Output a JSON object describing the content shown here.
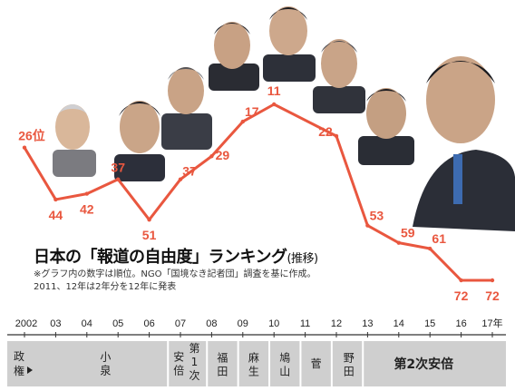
{
  "title": {
    "main": "日本の「報道の自由度」ランキング",
    "suffix": "(推移)"
  },
  "notes": [
    "※グラフ内の数字は順位。NGO「国境なき記者団」調査を基に作成。",
    "2011、12年は2年分を12年に発表"
  ],
  "axis_header": "政権",
  "chart_data": {
    "type": "line",
    "x": [
      "2002",
      "03",
      "04",
      "05",
      "06",
      "07",
      "08",
      "09",
      "10",
      "11",
      "12",
      "13",
      "14",
      "15",
      "16",
      "17年"
    ],
    "points": [
      {
        "x": "2002",
        "rank": 26,
        "label": "26位"
      },
      {
        "x": "03",
        "rank": 44,
        "label": "44"
      },
      {
        "x": "04",
        "rank": 42,
        "label": "42"
      },
      {
        "x": "05",
        "rank": 37,
        "label": "37"
      },
      {
        "x": "06",
        "rank": 51,
        "label": "51"
      },
      {
        "x": "07",
        "rank": 37,
        "label": "37"
      },
      {
        "x": "08",
        "rank": 29,
        "label": "29"
      },
      {
        "x": "09",
        "rank": 17,
        "label": "17"
      },
      {
        "x": "10",
        "rank": 11,
        "label": "11"
      },
      {
        "x": "12",
        "rank": 22,
        "label": "22"
      },
      {
        "x": "13",
        "rank": 53,
        "label": "53"
      },
      {
        "x": "14",
        "rank": 59,
        "label": "59"
      },
      {
        "x": "15",
        "rank": 61,
        "label": "61"
      },
      {
        "x": "16",
        "rank": 72,
        "label": "72"
      },
      {
        "x": "17年",
        "rank": 72,
        "label": "72"
      }
    ],
    "y_inverted": true,
    "line_color": "#e9573f",
    "administrations": [
      {
        "label": "小泉",
        "from": "2002",
        "to": "06"
      },
      {
        "label": "安倍",
        "from": "06",
        "to": "07"
      },
      {
        "label": "第1次",
        "from": "06",
        "to": "07"
      },
      {
        "label": "福田",
        "from": "07",
        "to": "08"
      },
      {
        "label": "麻生",
        "from": "08",
        "to": "09"
      },
      {
        "label": "鳩山",
        "from": "09",
        "to": "10"
      },
      {
        "label": "菅",
        "from": "10",
        "to": "11"
      },
      {
        "label": "野田",
        "from": "11",
        "to": "12"
      },
      {
        "label": "第2次安倍",
        "from": "12",
        "to": "17年"
      }
    ]
  },
  "colors": {
    "line": "#e9573f",
    "bar": "#cfcfcf"
  }
}
